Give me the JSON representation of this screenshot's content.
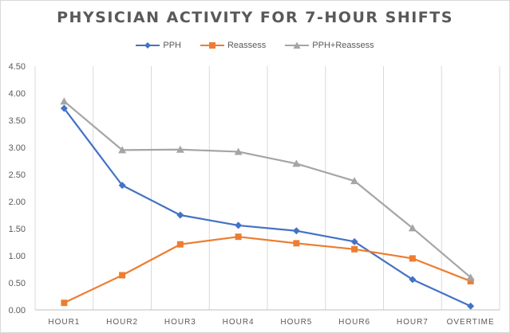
{
  "chart_data": {
    "type": "line",
    "title": "PHYSICIAN ACTIVITY FOR 7-HOUR SHIFTS",
    "categories": [
      "HOUR1",
      "HOUR2",
      "HOUR3",
      "HOUR4",
      "HOUR5",
      "HOUR6",
      "HOUR7",
      "OVERTIME"
    ],
    "ylim": [
      0,
      4.5
    ],
    "yticks": [
      "0.00",
      "0.50",
      "1.00",
      "1.50",
      "2.00",
      "2.50",
      "3.00",
      "3.50",
      "4.00",
      "4.50"
    ],
    "grid": "vertical",
    "legend_position": "top",
    "series": [
      {
        "name": "PPH",
        "color": "#4472c4",
        "marker": "diamond",
        "values": [
          3.72,
          2.3,
          1.75,
          1.56,
          1.46,
          1.26,
          0.56,
          0.07
        ]
      },
      {
        "name": "Reassess",
        "color": "#ed7d31",
        "marker": "square",
        "values": [
          0.13,
          0.64,
          1.21,
          1.35,
          1.23,
          1.12,
          0.95,
          0.53
        ]
      },
      {
        "name": "PPH+Reassess",
        "color": "#a5a5a5",
        "marker": "triangle",
        "values": [
          3.85,
          2.95,
          2.96,
          2.92,
          2.7,
          2.38,
          1.51,
          0.6
        ]
      }
    ]
  }
}
